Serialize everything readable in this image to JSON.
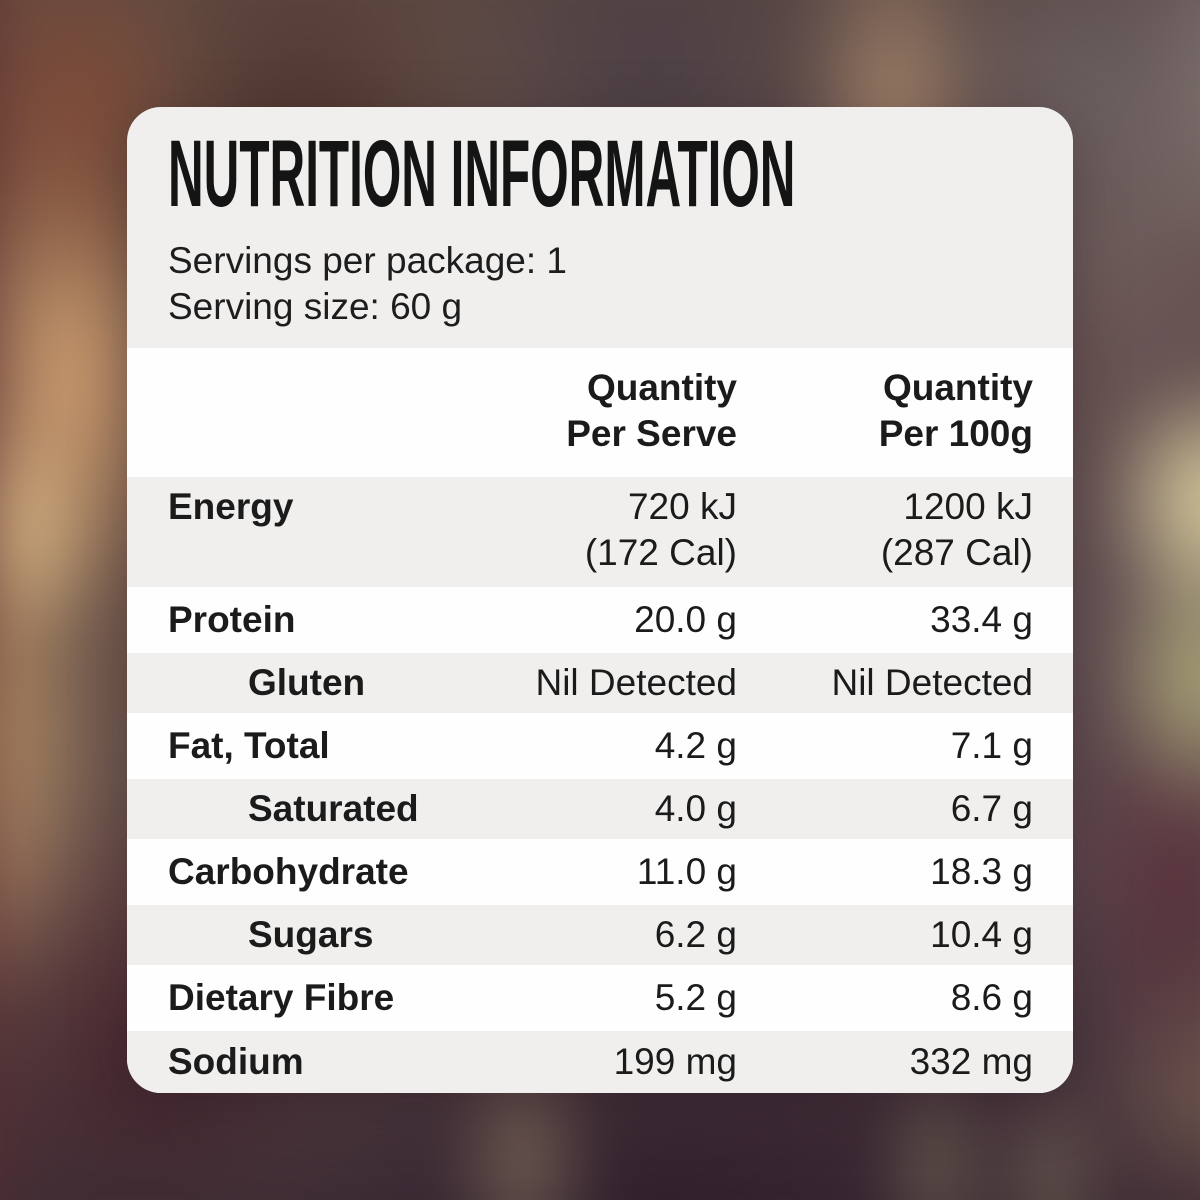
{
  "panel": {
    "title": "NUTRITION INFORMATION",
    "servings_per_package": "Servings per package: 1",
    "serving_size": "Serving size: 60 g",
    "columns": {
      "per_serve": [
        "Quantity",
        "Per Serve"
      ],
      "per_100g": [
        "Quantity",
        "Per 100g"
      ]
    },
    "rows": [
      {
        "name": "Energy",
        "indent": false,
        "per_serve": "720 kJ",
        "per_serve_note": "(172 Cal)",
        "per_100g": "1200 kJ",
        "per_100g_note": "(287 Cal)"
      },
      {
        "name": "Protein",
        "indent": false,
        "per_serve": "20.0 g",
        "per_100g": "33.4 g"
      },
      {
        "name": "Gluten",
        "indent": true,
        "per_serve": "Nil Detected",
        "per_100g": "Nil Detected"
      },
      {
        "name": "Fat, Total",
        "indent": false,
        "per_serve": "4.2 g",
        "per_100g": "7.1 g"
      },
      {
        "name": "Saturated",
        "indent": true,
        "per_serve": "4.0 g",
        "per_100g": "6.7 g"
      },
      {
        "name": "Carbohydrate",
        "indent": false,
        "per_serve": "11.0 g",
        "per_100g": "18.3 g"
      },
      {
        "name": "Sugars",
        "indent": true,
        "per_serve": "6.2 g",
        "per_100g": "10.4 g"
      },
      {
        "name": "Dietary Fibre",
        "indent": false,
        "per_serve": "5.2 g",
        "per_100g": "8.6 g"
      },
      {
        "name": "Sodium",
        "indent": false,
        "per_serve": "199 mg",
        "per_100g": "332 mg"
      }
    ]
  },
  "colors": {
    "panel-gray": "#f0efee",
    "panel-white": "#fefefe",
    "separator": "#ffffff",
    "text": "#1b1b1b"
  }
}
